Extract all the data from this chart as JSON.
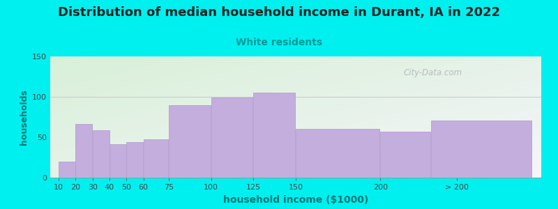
{
  "title": "Distribution of median household income in Durant, IA in 2022",
  "subtitle": "White residents",
  "xlabel": "household income ($1000)",
  "ylabel": "households",
  "bar_labels": [
    "10",
    "20",
    "30",
    "40",
    "50",
    "60",
    "75",
    "100",
    "125",
    "150",
    "200",
    "> 200"
  ],
  "bar_values": [
    20,
    66,
    59,
    41,
    44,
    47,
    90,
    99,
    105,
    60,
    57,
    71
  ],
  "bar_color": "#c4aede",
  "bar_edge_color": "#b49ece",
  "background_outer": "#00f0f0",
  "plot_bg_top_left": "#d8f0d8",
  "plot_bg_bottom_right": "#f5f5fa",
  "title_fontsize": 13,
  "title_color": "#222222",
  "subtitle_color": "#009999",
  "subtitle_fontsize": 10,
  "axis_label_color": "#007777",
  "tick_color": "#444444",
  "ylim": [
    0,
    150
  ],
  "yticks": [
    0,
    50,
    100,
    150
  ],
  "watermark": "City-Data.com",
  "bar_positions": [
    10,
    20,
    30,
    40,
    50,
    60,
    75,
    100,
    125,
    150,
    200,
    230
  ],
  "bar_widths": [
    10,
    10,
    10,
    10,
    10,
    15,
    25,
    25,
    25,
    50,
    30,
    60
  ],
  "tick_positions": [
    10,
    20,
    30,
    40,
    50,
    60,
    75,
    100,
    125,
    150,
    200,
    245
  ],
  "xlim": [
    5,
    295
  ]
}
